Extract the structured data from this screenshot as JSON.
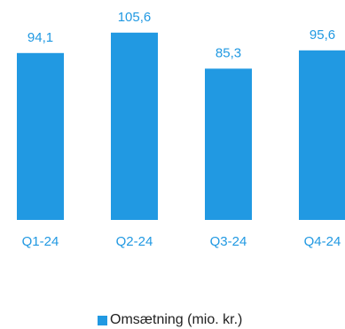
{
  "chart_data": {
    "type": "bar",
    "categories": [
      "Q1-24",
      "Q2-24",
      "Q3-24",
      "Q4-24"
    ],
    "series": [
      {
        "name": "Omsætning (mio. kr.)",
        "values": [
          94.1,
          105.6,
          85.3,
          95.6
        ]
      }
    ],
    "data_labels": [
      "94,1",
      "105,6",
      "85,3",
      "95,6"
    ],
    "title": "",
    "xlabel": "",
    "ylabel": "",
    "ylim": [
      0,
      110
    ],
    "grid": false,
    "legend_position": "bottom-center",
    "colors": {
      "bar": "#2199e2",
      "label": "#2199e2"
    }
  }
}
